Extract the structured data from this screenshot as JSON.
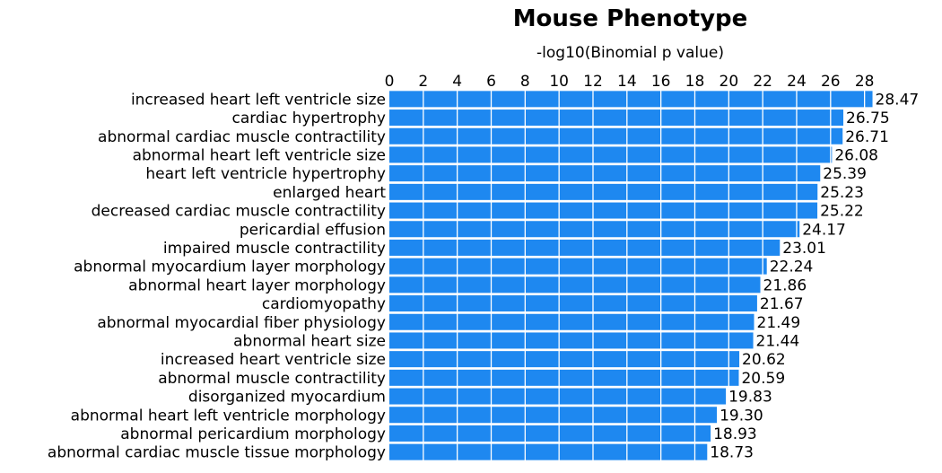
{
  "chart_data": {
    "type": "bar",
    "orientation": "horizontal",
    "title": "Mouse Phenotype",
    "xlabel": "-log10(Binomial p value)",
    "xlim": [
      0,
      28.6
    ],
    "xticks": [
      0,
      2,
      4,
      6,
      8,
      10,
      12,
      14,
      16,
      18,
      20,
      22,
      24,
      26,
      28
    ],
    "grid": true,
    "bar_color": "#1e88f0",
    "categories": [
      "increased heart left ventricle size",
      "cardiac hypertrophy",
      "abnormal cardiac muscle contractility",
      "abnormal heart left ventricle size",
      "heart left ventricle hypertrophy",
      "enlarged heart",
      "decreased cardiac muscle contractility",
      "pericardial effusion",
      "impaired muscle contractility",
      "abnormal myocardium layer morphology",
      "abnormal heart layer morphology",
      "cardiomyopathy",
      "abnormal myocardial fiber physiology",
      "abnormal heart size",
      "increased heart ventricle size",
      "abnormal muscle contractility",
      "disorganized myocardium",
      "abnormal heart left ventricle morphology",
      "abnormal pericardium morphology",
      "abnormal cardiac muscle tissue morphology"
    ],
    "values": [
      28.47,
      26.75,
      26.71,
      26.08,
      25.39,
      25.23,
      25.22,
      24.17,
      23.01,
      22.24,
      21.86,
      21.67,
      21.49,
      21.44,
      20.62,
      20.59,
      19.83,
      19.3,
      18.93,
      18.73
    ],
    "value_labels": [
      "28.47",
      "26.75",
      "26.71",
      "26.08",
      "25.39",
      "25.23",
      "25.22",
      "24.17",
      "23.01",
      "22.24",
      "21.86",
      "21.67",
      "21.49",
      "21.44",
      "20.62",
      "20.59",
      "19.83",
      "19.30",
      "18.93",
      "18.73"
    ]
  }
}
